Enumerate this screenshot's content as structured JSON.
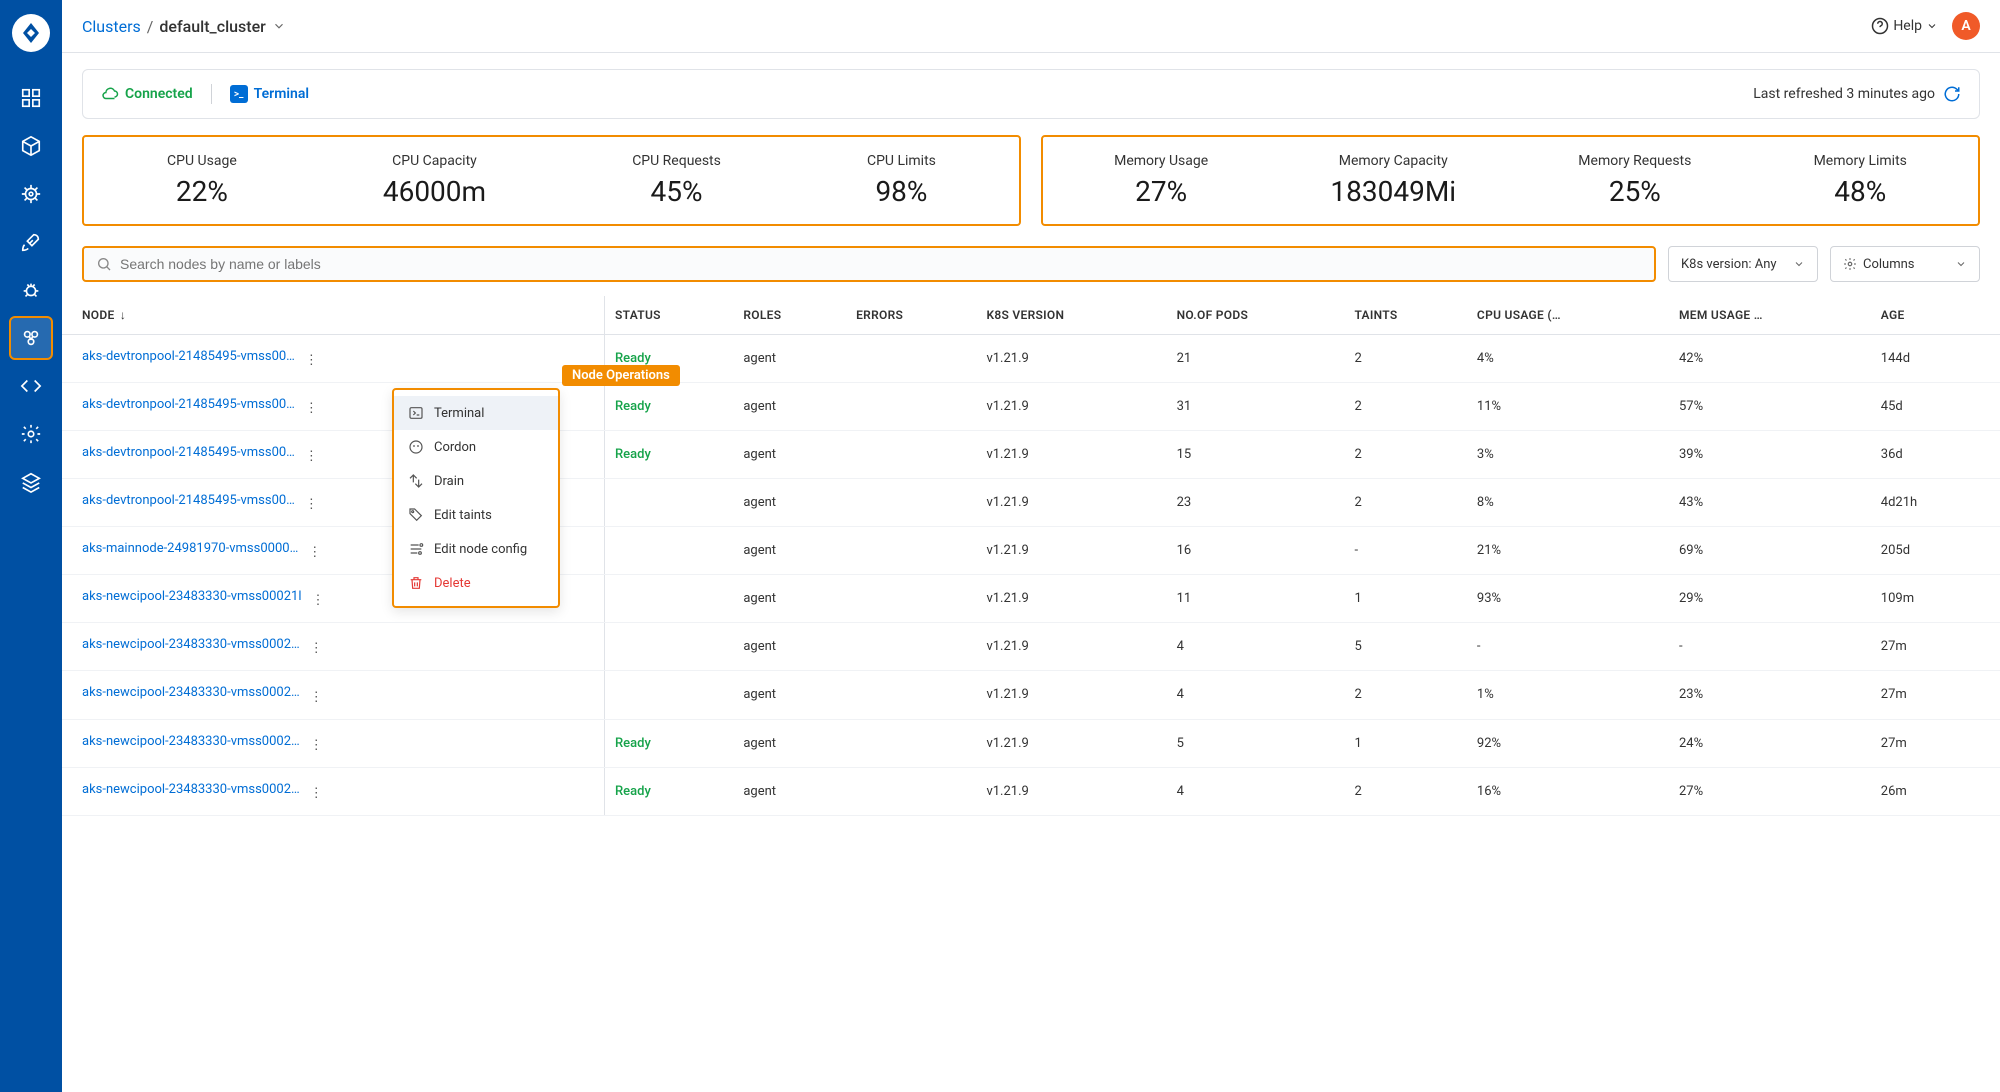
{
  "colors": {
    "primary": "#006dd5",
    "sidebar_bg": "#0050a3",
    "accent": "#f28c00",
    "success": "#16a34a",
    "danger": "#e53935",
    "avatar_bg": "#f05a28",
    "border": "#e0e3e8"
  },
  "header": {
    "breadcrumb_parent": "Clusters",
    "breadcrumb_current": "default_cluster",
    "help_label": "Help",
    "avatar_letter": "A"
  },
  "status": {
    "connected_label": "Connected",
    "terminal_label": "Terminal",
    "refresh_text": "Last refreshed 3 minutes ago"
  },
  "metrics": {
    "cpu": [
      {
        "label": "CPU Usage",
        "value": "22%"
      },
      {
        "label": "CPU Capacity",
        "value": "46000m"
      },
      {
        "label": "CPU Requests",
        "value": "45%"
      },
      {
        "label": "CPU Limits",
        "value": "98%"
      }
    ],
    "memory": [
      {
        "label": "Memory Usage",
        "value": "27%"
      },
      {
        "label": "Memory Capacity",
        "value": "183049Mi"
      },
      {
        "label": "Memory Requests",
        "value": "25%"
      },
      {
        "label": "Memory Limits",
        "value": "48%"
      }
    ]
  },
  "controls": {
    "search_placeholder": "Search nodes by name or labels",
    "k8s_dropdown": "K8s version: Any",
    "columns_dropdown": "Columns"
  },
  "table": {
    "columns": [
      "NODE",
      "STATUS",
      "ROLES",
      "ERRORS",
      "K8S VERSION",
      "NO.OF PODS",
      "TAINTS",
      "CPU USAGE (…",
      "MEM USAGE …",
      "AGE"
    ],
    "sort_column": 0,
    "rows": [
      {
        "node": "aks-devtronpool-21485495-vmss00…",
        "status": "Ready",
        "roles": "agent",
        "errors": "",
        "k8s": "v1.21.9",
        "pods": "21",
        "taints": "2",
        "cpu": "4%",
        "mem": "42%",
        "age": "144d"
      },
      {
        "node": "aks-devtronpool-21485495-vmss00…",
        "status": "Ready",
        "roles": "agent",
        "errors": "",
        "k8s": "v1.21.9",
        "pods": "31",
        "taints": "2",
        "cpu": "11%",
        "mem": "57%",
        "age": "45d"
      },
      {
        "node": "aks-devtronpool-21485495-vmss00…",
        "status": "Ready",
        "roles": "agent",
        "errors": "",
        "k8s": "v1.21.9",
        "pods": "15",
        "taints": "2",
        "cpu": "3%",
        "mem": "39%",
        "age": "36d"
      },
      {
        "node": "aks-devtronpool-21485495-vmss00…",
        "status": "",
        "roles": "agent",
        "errors": "",
        "k8s": "v1.21.9",
        "pods": "23",
        "taints": "2",
        "cpu": "8%",
        "mem": "43%",
        "age": "4d21h"
      },
      {
        "node": "aks-mainnode-24981970-vmss0000…",
        "status": "",
        "roles": "agent",
        "errors": "",
        "k8s": "v1.21.9",
        "pods": "16",
        "taints": "-",
        "cpu": "21%",
        "mem": "69%",
        "age": "205d"
      },
      {
        "node": "aks-newcipool-23483330-vmss00021l",
        "status": "",
        "roles": "agent",
        "errors": "",
        "k8s": "v1.21.9",
        "pods": "11",
        "taints": "1",
        "cpu": "93%",
        "mem": "29%",
        "age": "109m"
      },
      {
        "node": "aks-newcipool-23483330-vmss0002…",
        "status": "",
        "roles": "agent",
        "errors": "",
        "k8s": "v1.21.9",
        "pods": "4",
        "taints": "5",
        "cpu": "-",
        "mem": "-",
        "age": "27m"
      },
      {
        "node": "aks-newcipool-23483330-vmss0002…",
        "status": "",
        "roles": "agent",
        "errors": "",
        "k8s": "v1.21.9",
        "pods": "4",
        "taints": "2",
        "cpu": "1%",
        "mem": "23%",
        "age": "27m"
      },
      {
        "node": "aks-newcipool-23483330-vmss0002…",
        "status": "Ready",
        "roles": "agent",
        "errors": "",
        "k8s": "v1.21.9",
        "pods": "5",
        "taints": "1",
        "cpu": "92%",
        "mem": "24%",
        "age": "27m"
      },
      {
        "node": "aks-newcipool-23483330-vmss0002…",
        "status": "Ready",
        "roles": "agent",
        "errors": "",
        "k8s": "v1.21.9",
        "pods": "4",
        "taints": "2",
        "cpu": "16%",
        "mem": "27%",
        "age": "26m"
      }
    ]
  },
  "context_menu": {
    "title": "Node Operations",
    "items": [
      {
        "label": "Terminal",
        "icon": "terminal",
        "highlighted": true
      },
      {
        "label": "Cordon",
        "icon": "cordon"
      },
      {
        "label": "Drain",
        "icon": "drain"
      },
      {
        "label": "Edit taints",
        "icon": "taints"
      },
      {
        "label": "Edit node config",
        "icon": "config"
      },
      {
        "label": "Delete",
        "icon": "delete",
        "danger": true
      }
    ]
  }
}
